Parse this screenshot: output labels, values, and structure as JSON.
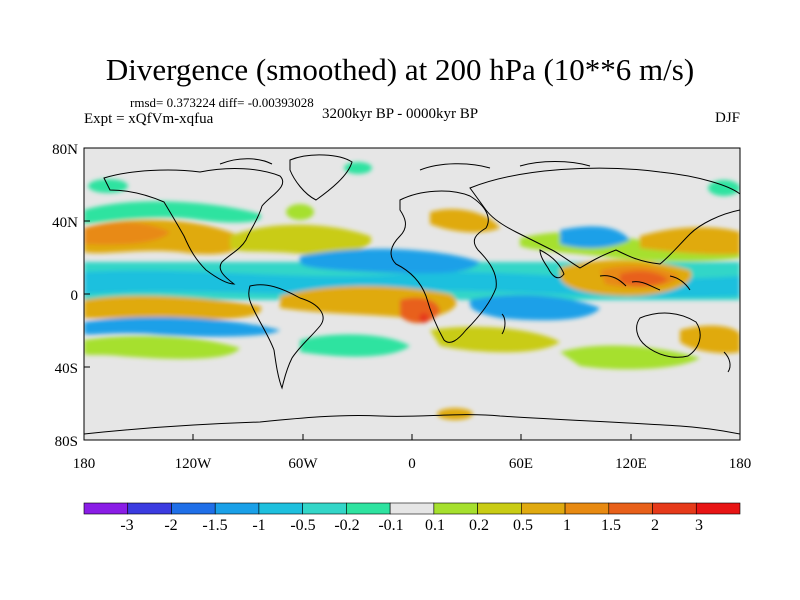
{
  "header": {
    "title": "Divergence (smoothed) at 200 hPa (10**6 m/s)",
    "stats": "rmsd= 0.373224 diff= -0.00393028",
    "experiment": "Expt = xQfVm-xqfua",
    "period": "3200kyr BP - 0000kyr BP",
    "season": "DJF"
  },
  "axes": {
    "lat_labels": [
      "80N",
      "40N",
      "0",
      "40S",
      "80S"
    ],
    "lon_labels": [
      "180",
      "120W",
      "60W",
      "0",
      "60E",
      "120E",
      "180"
    ]
  },
  "colorbar": {
    "labels": [
      "-3",
      "-2",
      "-1.5",
      "-1",
      "-0.5",
      "-0.2",
      "-0.1",
      "0.1",
      "0.2",
      "0.5",
      "1",
      "1.5",
      "2",
      "3"
    ],
    "colors": [
      "#8a1de6",
      "#3b3be0",
      "#1f6fe8",
      "#1aa0e8",
      "#1ec0de",
      "#33d6c8",
      "#2ee3a0",
      "#e6e6e6",
      "#a6e02e",
      "#c9cc14",
      "#e0aa10",
      "#e88a12",
      "#e8601a",
      "#e63a1a",
      "#e81414"
    ]
  },
  "map_colors": {
    "background": "#e6e6e6",
    "coast": "#000000"
  }
}
